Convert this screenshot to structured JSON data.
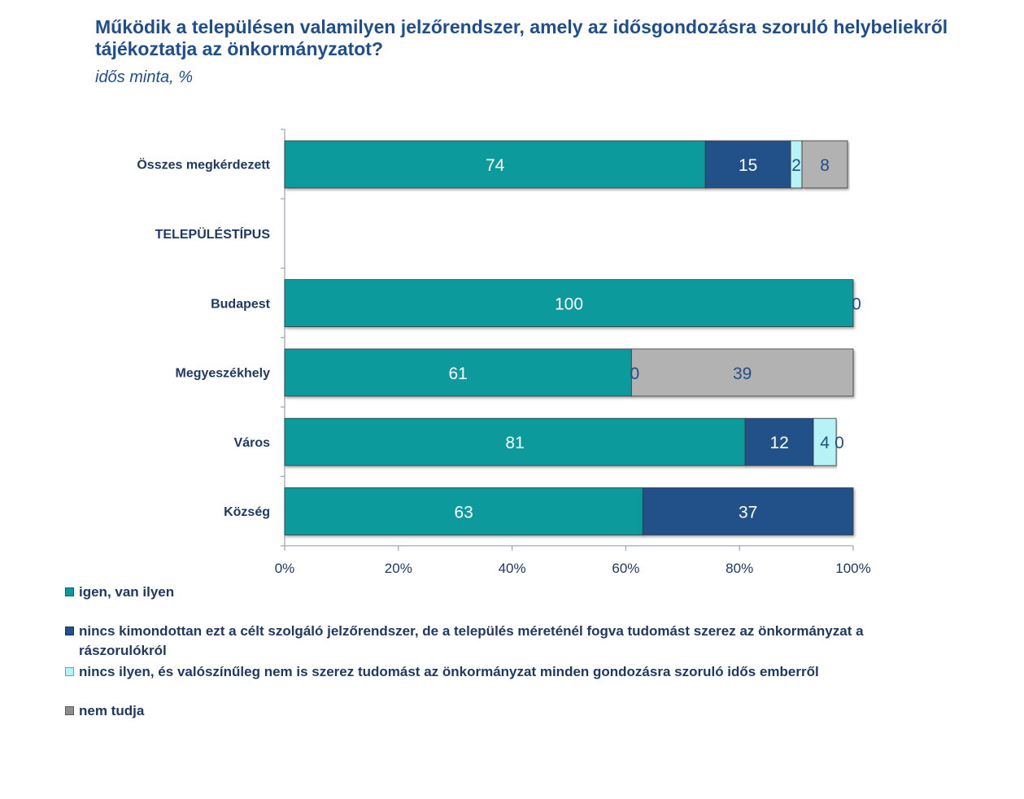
{
  "title": "Működik a településen valamilyen jelzőrendszer, amely az idősgondozásra szoruló helybeliekről tájékoztatja az önkormányzatot?",
  "subtitle": "idős minta, %",
  "colors": {
    "series": [
      "#079a9d",
      "#24518a",
      "#b7f2f6",
      "#b2b2b2"
    ],
    "label_on_dark": "#ffffff",
    "label_on_light": "#1f4e8c",
    "axis": "#9aa3b0"
  },
  "chart_data": {
    "type": "bar",
    "orientation": "horizontal",
    "stacked": "percent",
    "title": "Működik a településen valamilyen jelzőrendszer, amely az idősgondozásra szoruló helybeliekről tájékoztatja az önkormányzatot?",
    "subtitle": "idős minta, %",
    "xlabel": "",
    "ylabel": "",
    "xlim": [
      0,
      100
    ],
    "x_ticks": [
      "0%",
      "20%",
      "40%",
      "60%",
      "80%",
      "100%"
    ],
    "grid": false,
    "legend_position": "bottom",
    "categories": [
      "Összes megkérdezett",
      "TELEPÜLÉSTÍPUS",
      "Budapest",
      "Megyeszékhely",
      "Város",
      "Község"
    ],
    "series": [
      {
        "name": "igen, van ilyen",
        "values": [
          74,
          null,
          100,
          61,
          81,
          63
        ],
        "labels": [
          "74",
          "",
          "100",
          "61",
          "81",
          "63"
        ]
      },
      {
        "name": "nincs kimondottan ezt a célt szolgáló jelzőrendszer, de a település méreténél fogva tudomást szerez az önkormányzat a rászorulókról",
        "values": [
          15,
          null,
          0,
          0,
          12,
          37
        ],
        "labels": [
          "15",
          "",
          "",
          "0",
          "12",
          "37"
        ]
      },
      {
        "name": "nincs ilyen, és valószínűleg nem is szerez tudomást az önkormányzat minden gondozásra szoruló idős emberről",
        "values": [
          2,
          null,
          0,
          0,
          4,
          0
        ],
        "labels": [
          "2",
          "",
          "",
          "",
          "4",
          ""
        ]
      },
      {
        "name": "nem tudja",
        "values": [
          8,
          null,
          0,
          39,
          0,
          0
        ],
        "labels": [
          "8",
          "",
          "0",
          "39",
          "0",
          ""
        ]
      }
    ]
  },
  "legend": [
    {
      "label": "igen, van ilyen",
      "swatch": "#079a9d"
    },
    {
      "label": "nincs kimondottan ezt a célt szolgáló jelzőrendszer, de a település méreténél fogva tudomást szerez az önkormányzat a rászorulókról",
      "swatch": "#24518a"
    },
    {
      "label": "nincs ilyen, és valószínűleg nem is szerez tudomást az önkormányzat minden gondozásra szoruló idős emberről",
      "swatch": "#b7f2f6"
    },
    {
      "label": "nem tudja",
      "swatch": "#8c8c8c"
    }
  ]
}
